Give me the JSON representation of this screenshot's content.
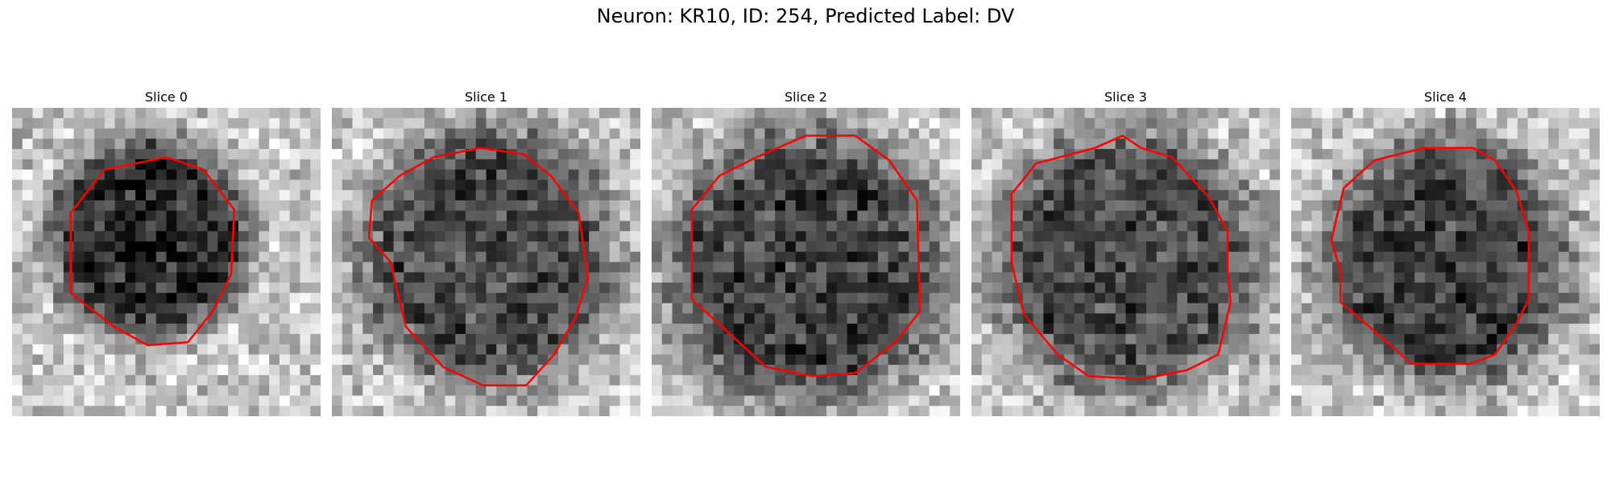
{
  "figure": {
    "title": "Neuron: KR10, ID: 254, Predicted Label: DV"
  },
  "panels": [
    {
      "title": "Slice 0",
      "seed": 11,
      "dark": [
        [
          0.45,
          0.42,
          0.32,
          0.9
        ]
      ],
      "contour": [
        [
          0.5,
          0.16
        ],
        [
          0.62,
          0.2
        ],
        [
          0.72,
          0.33
        ],
        [
          0.71,
          0.54
        ],
        [
          0.65,
          0.66
        ],
        [
          0.57,
          0.76
        ],
        [
          0.44,
          0.77
        ],
        [
          0.33,
          0.71
        ],
        [
          0.19,
          0.6
        ],
        [
          0.19,
          0.34
        ],
        [
          0.3,
          0.2
        ]
      ]
    },
    {
      "title": "Slice 1",
      "seed": 23,
      "dark": [
        [
          0.5,
          0.48,
          0.42,
          0.7
        ]
      ],
      "contour": [
        [
          0.48,
          0.13
        ],
        [
          0.62,
          0.15
        ],
        [
          0.71,
          0.22
        ],
        [
          0.8,
          0.34
        ],
        [
          0.83,
          0.55
        ],
        [
          0.79,
          0.68
        ],
        [
          0.72,
          0.8
        ],
        [
          0.63,
          0.9
        ],
        [
          0.49,
          0.9
        ],
        [
          0.36,
          0.84
        ],
        [
          0.24,
          0.71
        ],
        [
          0.19,
          0.5
        ],
        [
          0.12,
          0.42
        ],
        [
          0.13,
          0.3
        ],
        [
          0.22,
          0.22
        ],
        [
          0.33,
          0.16
        ]
      ]
    },
    {
      "title": "Slice 2",
      "seed": 37,
      "dark": [
        [
          0.5,
          0.52,
          0.45,
          0.75
        ]
      ],
      "contour": [
        [
          0.34,
          0.16
        ],
        [
          0.5,
          0.09
        ],
        [
          0.66,
          0.09
        ],
        [
          0.77,
          0.17
        ],
        [
          0.86,
          0.3
        ],
        [
          0.87,
          0.66
        ],
        [
          0.79,
          0.76
        ],
        [
          0.66,
          0.86
        ],
        [
          0.52,
          0.87
        ],
        [
          0.37,
          0.84
        ],
        [
          0.24,
          0.72
        ],
        [
          0.13,
          0.62
        ],
        [
          0.13,
          0.33
        ],
        [
          0.22,
          0.22
        ]
      ]
    },
    {
      "title": "Slice 3",
      "seed": 53,
      "dark": [
        [
          0.5,
          0.5,
          0.43,
          0.7
        ]
      ],
      "contour": [
        [
          0.4,
          0.13
        ],
        [
          0.49,
          0.09
        ],
        [
          0.55,
          0.13
        ],
        [
          0.65,
          0.16
        ],
        [
          0.77,
          0.29
        ],
        [
          0.83,
          0.4
        ],
        [
          0.83,
          0.52
        ],
        [
          0.84,
          0.63
        ],
        [
          0.8,
          0.8
        ],
        [
          0.7,
          0.85
        ],
        [
          0.55,
          0.88
        ],
        [
          0.38,
          0.87
        ],
        [
          0.28,
          0.8
        ],
        [
          0.17,
          0.67
        ],
        [
          0.13,
          0.5
        ],
        [
          0.13,
          0.28
        ],
        [
          0.21,
          0.18
        ]
      ]
    },
    {
      "title": "Slice 4",
      "seed": 71,
      "dark": [
        [
          0.5,
          0.5,
          0.4,
          0.75
        ]
      ],
      "contour": [
        [
          0.43,
          0.13
        ],
        [
          0.59,
          0.13
        ],
        [
          0.66,
          0.17
        ],
        [
          0.73,
          0.27
        ],
        [
          0.77,
          0.4
        ],
        [
          0.77,
          0.62
        ],
        [
          0.73,
          0.7
        ],
        [
          0.66,
          0.8
        ],
        [
          0.58,
          0.83
        ],
        [
          0.39,
          0.83
        ],
        [
          0.3,
          0.75
        ],
        [
          0.16,
          0.63
        ],
        [
          0.16,
          0.53
        ],
        [
          0.13,
          0.43
        ],
        [
          0.17,
          0.26
        ],
        [
          0.27,
          0.17
        ]
      ]
    }
  ],
  "colors": {
    "contour": "#ff0000",
    "background": "#ffffff"
  }
}
